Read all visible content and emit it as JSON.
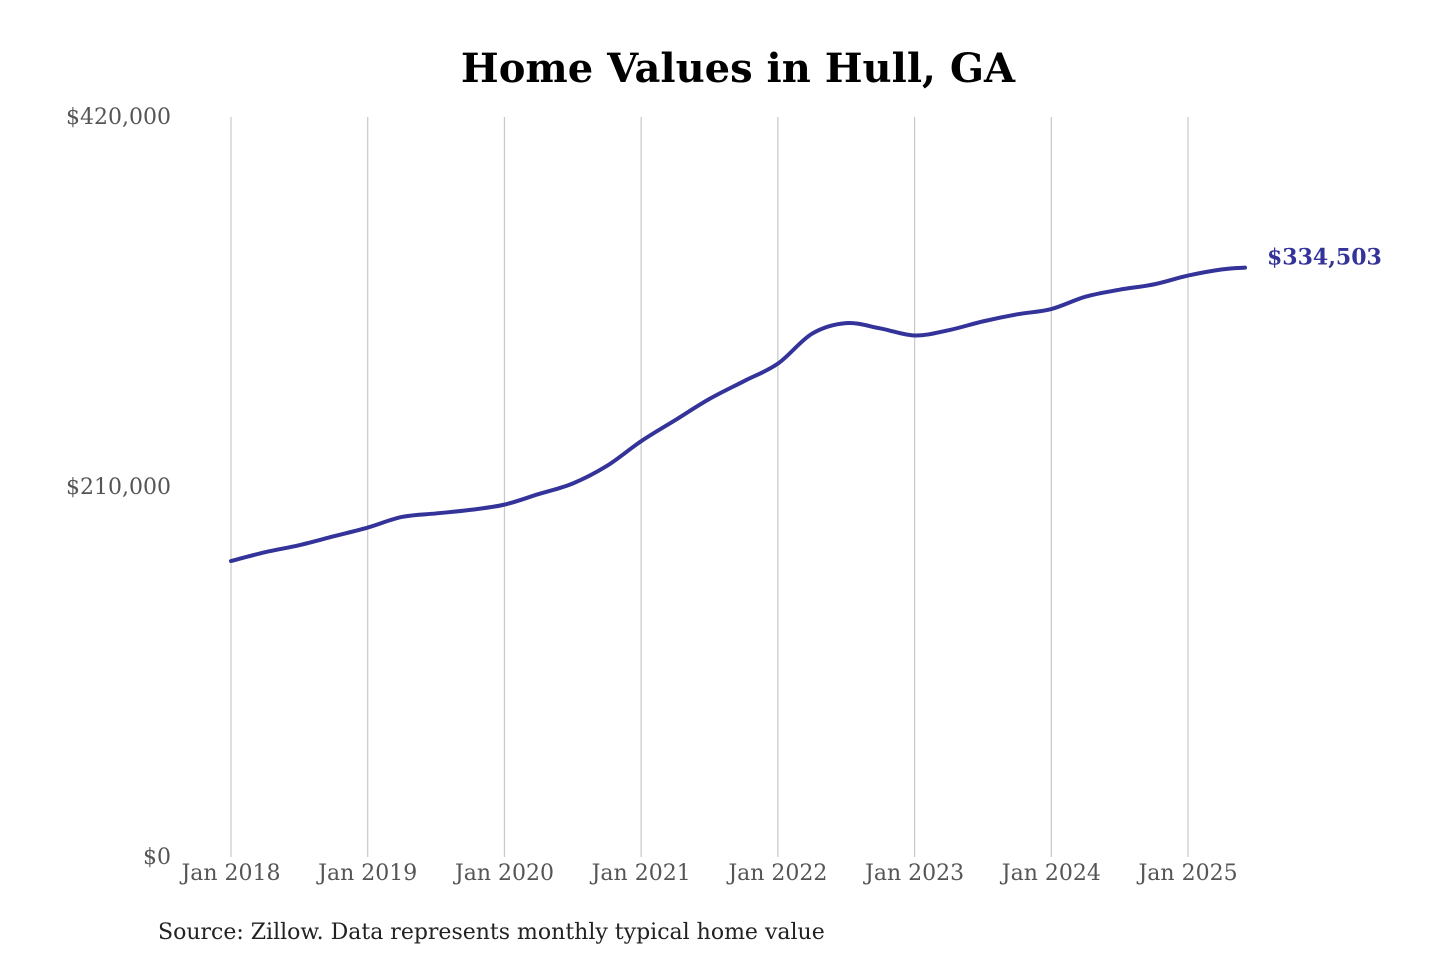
{
  "chart_data": {
    "type": "line",
    "title": "Home Values in Hull, GA",
    "source": "Source: Zillow. Data represents monthly typical home value",
    "xlabel": "",
    "ylabel": "",
    "xlim": [
      "2018-01",
      "2025-06"
    ],
    "ylim": [
      0,
      420000
    ],
    "yticks": [
      0,
      210000,
      420000
    ],
    "ytick_labels": [
      "$0",
      "$210,000",
      "$420,000"
    ],
    "xticks": [
      "2018-01",
      "2019-01",
      "2020-01",
      "2021-01",
      "2022-01",
      "2023-01",
      "2024-01",
      "2025-01"
    ],
    "xtick_labels": [
      "Jan 2018",
      "Jan 2019",
      "Jan 2020",
      "Jan 2021",
      "Jan 2022",
      "Jan 2023",
      "Jan 2024",
      "Jan 2025"
    ],
    "grid": "vertical",
    "series": [
      {
        "color": "#33339a",
        "end_label": "$334,503",
        "points": [
          [
            "2018-01",
            168000
          ],
          [
            "2018-04",
            173000
          ],
          [
            "2018-07",
            177000
          ],
          [
            "2018-10",
            182000
          ],
          [
            "2019-01",
            187000
          ],
          [
            "2019-04",
            193000
          ],
          [
            "2019-07",
            195000
          ],
          [
            "2019-10",
            197000
          ],
          [
            "2020-01",
            200000
          ],
          [
            "2020-04",
            206000
          ],
          [
            "2020-07",
            212000
          ],
          [
            "2020-10",
            222000
          ],
          [
            "2021-01",
            236000
          ],
          [
            "2021-04",
            248000
          ],
          [
            "2021-07",
            260000
          ],
          [
            "2021-10",
            270000
          ],
          [
            "2022-01",
            280000
          ],
          [
            "2022-04",
            297000
          ],
          [
            "2022-07",
            303000
          ],
          [
            "2022-10",
            300000
          ],
          [
            "2023-01",
            296000
          ],
          [
            "2023-04",
            299000
          ],
          [
            "2023-07",
            304000
          ],
          [
            "2023-10",
            308000
          ],
          [
            "2024-01",
            311000
          ],
          [
            "2024-04",
            318000
          ],
          [
            "2024-07",
            322000
          ],
          [
            "2024-10",
            325000
          ],
          [
            "2025-01",
            330000
          ],
          [
            "2025-04",
            333500
          ],
          [
            "2025-06",
            334503
          ]
        ]
      }
    ]
  }
}
